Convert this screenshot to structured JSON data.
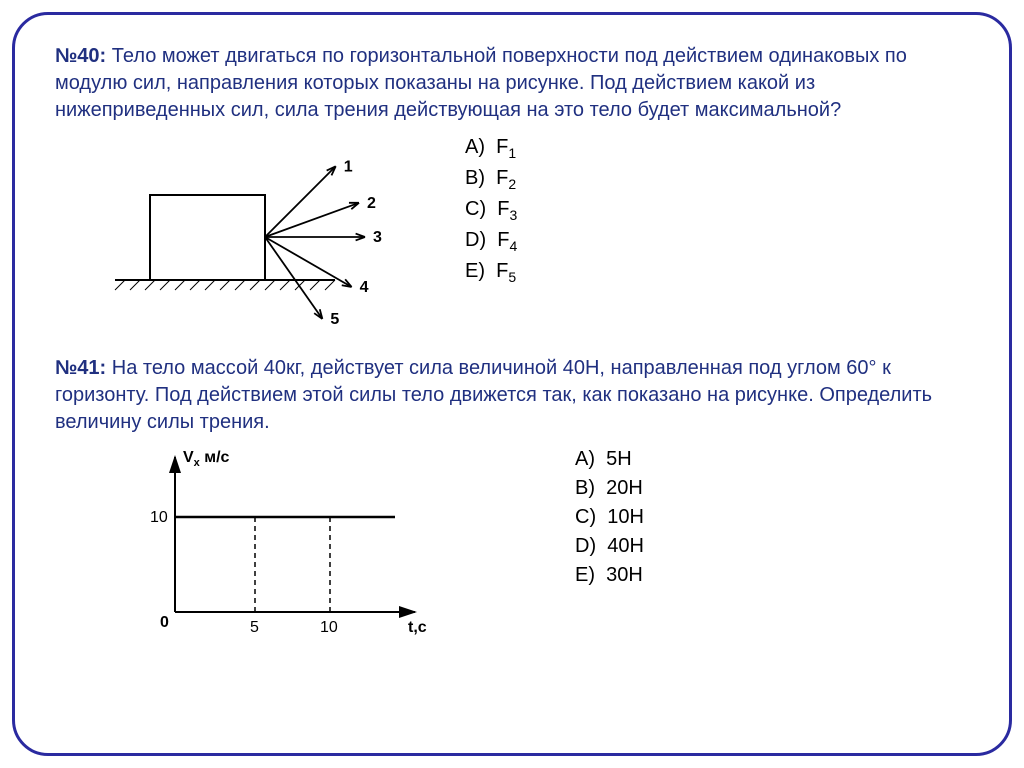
{
  "frame_border_color": "#2a2aa0",
  "text_color_blue": "#203080",
  "q40": {
    "number": "№40:",
    "text": "Тело может двигаться по горизонтальной поверхности под действием одинаковых по модулю сил, направления которых показаны на рисунке. Под действием какой из нижеприведенных сил, сила трения действующая на это тело будет максимальной?",
    "diagram": {
      "arrows": [
        {
          "label": "1",
          "angle_deg": 45
        },
        {
          "label": "2",
          "angle_deg": 20
        },
        {
          "label": "3",
          "angle_deg": 0
        },
        {
          "label": "4",
          "angle_deg": -30
        },
        {
          "label": "5",
          "angle_deg": -55
        }
      ],
      "stroke": "#000000"
    },
    "options": [
      {
        "letter": "A)",
        "label": "F",
        "sub": "1"
      },
      {
        "letter": "B)",
        "label": "F",
        "sub": "2"
      },
      {
        "letter": "C)",
        "label": "F",
        "sub": "3"
      },
      {
        "letter": "D)",
        "label": "F",
        "sub": "4"
      },
      {
        "letter": "E)",
        "label": "F",
        "sub": "5"
      }
    ]
  },
  "q41": {
    "number": "№41:",
    "text": "На тело массой 40кг, действует сила величиной 40Н, направленная под углом 60° к горизонту. Под действием этой силы  тело движется так, как показано на рисунке. Определить величину силы трения.",
    "chart": {
      "y_axis_label": "V",
      "y_axis_sub": "x",
      "y_unit": "м/с",
      "x_axis_label": "t,c",
      "y_value": "10",
      "x_ticks": [
        "5",
        "10"
      ],
      "line_y": 10,
      "ylim": [
        0,
        15
      ],
      "xlim": [
        0,
        14
      ],
      "stroke": "#000000",
      "dash": "4 3"
    },
    "options": [
      {
        "letter": "A)",
        "label": "5Н"
      },
      {
        "letter": "B)",
        "label": "20Н"
      },
      {
        "letter": "C)",
        "label": "10Н"
      },
      {
        "letter": "D)",
        "label": "40Н"
      },
      {
        "letter": "E)",
        "label": "30Н"
      }
    ]
  }
}
